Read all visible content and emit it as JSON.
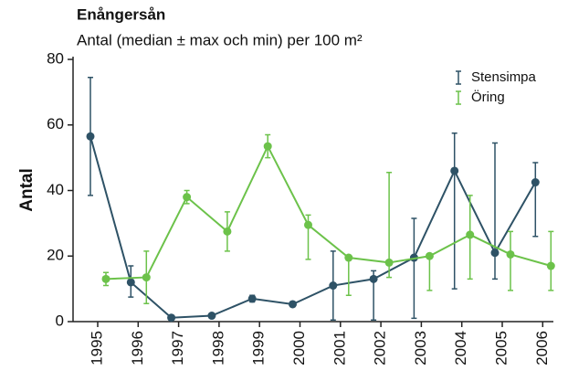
{
  "chart_data": {
    "type": "line",
    "title": "Enångersån",
    "subtitle": "Antal (median ± max och min) per 100 m²",
    "ylabel": "Antal",
    "categories": [
      "1995",
      "1996",
      "1997",
      "1998",
      "1999",
      "2000",
      "2001",
      "2002",
      "2003",
      "2004",
      "2005",
      "2006"
    ],
    "ylim": [
      0,
      80
    ],
    "yticks": [
      0,
      20,
      40,
      60,
      80
    ],
    "legend": "top-right",
    "series": [
      {
        "name": "Stensimpa",
        "color": "#2e5266",
        "values": [
          56.5,
          12,
          1.2,
          1.8,
          7,
          5.3,
          11,
          13,
          19.5,
          46,
          21,
          42.5
        ],
        "upper": [
          74.5,
          17,
          null,
          null,
          8,
          null,
          21.5,
          15.5,
          31.5,
          57.5,
          54.5,
          48.5
        ],
        "lower": [
          38.5,
          7.5,
          null,
          null,
          6,
          null,
          0.5,
          0.5,
          1,
          10,
          13,
          26
        ]
      },
      {
        "name": "Öring",
        "color": "#6cc24a",
        "values": [
          13,
          13.5,
          38,
          27.5,
          53.5,
          29.5,
          19.5,
          18,
          20,
          26.5,
          20.5,
          17
        ],
        "upper": [
          15,
          21.5,
          40,
          33.5,
          57,
          32.5,
          19.5,
          45.5,
          20,
          38.5,
          27.5,
          27.5
        ],
        "lower": [
          11,
          5.5,
          36,
          21.5,
          50,
          19,
          8,
          13.5,
          9.5,
          13,
          9.5,
          9.5
        ]
      }
    ]
  }
}
